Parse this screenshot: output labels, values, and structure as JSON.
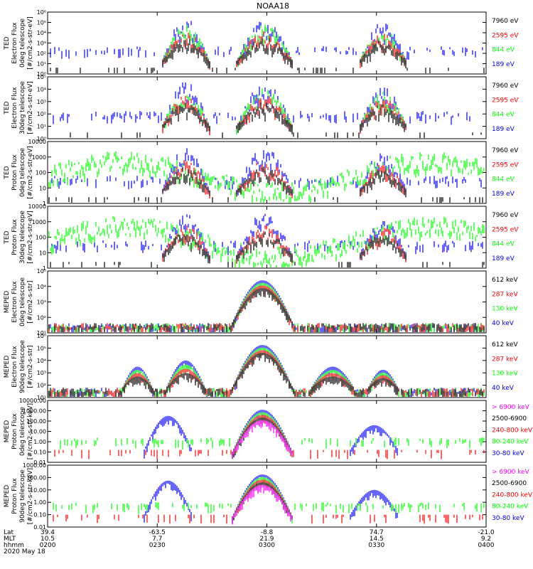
{
  "title": "NOAA18",
  "footer": {
    "row_labels": [
      "Lat",
      "MLT",
      "hhmm",
      "2020 May 18"
    ],
    "columns": [
      {
        "lat": "39.4",
        "mlt": "10.5",
        "hhmm": "0200"
      },
      {
        "lat": "-63.5",
        "mlt": "7.7",
        "hhmm": "0230"
      },
      {
        "lat": "-8.8",
        "mlt": "21.9",
        "hhmm": "0300"
      },
      {
        "lat": "74.7",
        "mlt": "14.5",
        "hhmm": "0330"
      },
      {
        "lat": "-21.0",
        "mlt": "9.2",
        "hhmm": "0400"
      }
    ]
  },
  "colors": {
    "black": "#000000",
    "red": "#ff0000",
    "green": "#00ff00",
    "blue": "#0000ff",
    "magenta": "#ff00ff"
  },
  "chart_data": [
    {
      "type": "line",
      "ylabel": [
        "TED",
        "Electron Flux",
        "0deg telescope",
        "[#/cm2-s-str-eV]"
      ],
      "yticks": [
        "10⁰",
        "10¹",
        "10²",
        "10³",
        "10⁴",
        "10⁵",
        "10⁶"
      ],
      "legend": [
        {
          "label": "7960 eV",
          "color": "black"
        },
        {
          "label": "2595 eV",
          "color": "red"
        },
        {
          "label": "844 eV",
          "color": "green"
        },
        {
          "label": "189 eV",
          "color": "blue"
        }
      ]
    },
    {
      "type": "line",
      "ylabel": [
        "TED",
        "Electron Flux",
        "30deg telescope",
        "[#/cm2-s-str-eV]"
      ],
      "yticks": [
        "10⁰",
        "10¹",
        "10²",
        "10³",
        "10⁴",
        "10⁵"
      ],
      "legend": [
        {
          "label": "7960 eV",
          "color": "black"
        },
        {
          "label": "2595 eV",
          "color": "red"
        },
        {
          "label": "844 eV",
          "color": "green"
        },
        {
          "label": "189 eV",
          "color": "blue"
        }
      ]
    },
    {
      "type": "line",
      "ylabel": [
        "TED",
        "Proton Flux",
        "0deg telescope",
        "[#/cm2-s-str-eV]"
      ],
      "yticks": [
        "1",
        "10",
        "100",
        "1000",
        "10000"
      ],
      "legend": [
        {
          "label": "7960 eV",
          "color": "black"
        },
        {
          "label": "2595 eV",
          "color": "red"
        },
        {
          "label": "844 eV",
          "color": "green"
        },
        {
          "label": "189 eV",
          "color": "blue"
        }
      ]
    },
    {
      "type": "line",
      "ylabel": [
        "TED",
        "Proton Flux",
        "30deg telescope",
        "[#/cm2-s-str-eV]"
      ],
      "yticks": [
        "1",
        "10",
        "100",
        "1000",
        "10000"
      ],
      "legend": [
        {
          "label": "7960 eV",
          "color": "black"
        },
        {
          "label": "2595 eV",
          "color": "red"
        },
        {
          "label": "844 eV",
          "color": "green"
        },
        {
          "label": "189 eV",
          "color": "blue"
        }
      ]
    },
    {
      "type": "line",
      "ylabel": [
        "MEPED",
        "Electron Flux",
        "0deg telescope",
        "[#/cm2-s-str]"
      ],
      "yticks": [
        "10¹",
        "10²",
        "10³",
        "10⁴",
        "10⁵"
      ],
      "legend": [
        {
          "label": "612 keV",
          "color": "black"
        },
        {
          "label": "287 keV",
          "color": "red"
        },
        {
          "label": "130 keV",
          "color": "green"
        },
        {
          "label": "40 keV",
          "color": "blue"
        }
      ]
    },
    {
      "type": "line",
      "ylabel": [
        "MEPED",
        "Electron Flux",
        "90deg telescope",
        "[#/cm2-s-str]"
      ],
      "yticks": [
        "10¹",
        "10²",
        "10³",
        "10⁴",
        "10⁵",
        "10⁶"
      ],
      "legend": [
        {
          "label": "612 keV",
          "color": "black"
        },
        {
          "label": "287 keV",
          "color": "red"
        },
        {
          "label": "130 keV",
          "color": "green"
        },
        {
          "label": "40 keV",
          "color": "blue"
        }
      ]
    },
    {
      "type": "line",
      "ylabel": [
        "MEPED",
        "Proton Flux",
        "0deg telescope",
        "[#/cm2-s-str-keV]"
      ],
      "yticks": [
        "0.01",
        "0.10",
        "1.00",
        "10.00",
        "100.00",
        "1000.00",
        "10000.00"
      ],
      "legend": [
        {
          "label": "> 6900 keV",
          "color": "magenta"
        },
        {
          "label": "2500-6900",
          "color": "black"
        },
        {
          "label": "240-800 keV",
          "color": "red"
        },
        {
          "label": "80-240 keV",
          "color": "green"
        },
        {
          "label": "30-80 keV",
          "color": "blue"
        }
      ]
    },
    {
      "type": "line",
      "ylabel": [
        "MEPED",
        "Proton Flux",
        "90deg telescope",
        "[#/cm2-s-str-keV]"
      ],
      "yticks": [
        "0.01",
        "0.10",
        "1.00",
        "10.00",
        "100.00",
        "1000.00"
      ],
      "legend": [
        {
          "label": "> 6900 keV",
          "color": "magenta"
        },
        {
          "label": "2500-6900",
          "color": "black"
        },
        {
          "label": "240-800 keV",
          "color": "red"
        },
        {
          "label": "80-240 keV",
          "color": "green"
        },
        {
          "label": "30-80 keV",
          "color": "blue"
        }
      ]
    }
  ]
}
